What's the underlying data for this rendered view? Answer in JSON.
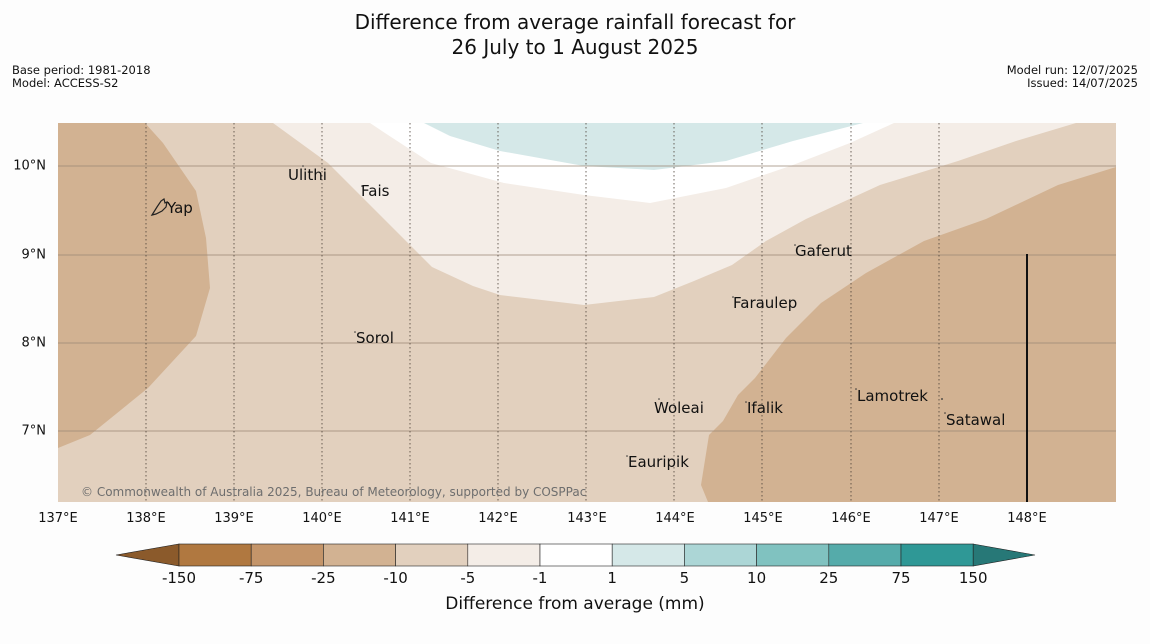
{
  "title": {
    "line1": "Difference from average rainfall forecast for",
    "line2": "26 July to 1 August 2025"
  },
  "meta": {
    "base_period": "Base period: 1981-2018",
    "model": "Model: ACCESS-S2",
    "model_run": "Model run: 12/07/2025",
    "issued": "Issued: 14/07/2025"
  },
  "axes": {
    "lat_labels": [
      "10°N",
      "9°N",
      "8°N",
      "7°N"
    ],
    "lon_labels": [
      "137°E",
      "138°E",
      "139°E",
      "140°E",
      "141°E",
      "142°E",
      "143°E",
      "144°E",
      "145°E",
      "146°E",
      "147°E",
      "148°E"
    ]
  },
  "places": [
    {
      "name": "Ulithi"
    },
    {
      "name": "Fais"
    },
    {
      "name": "Yap"
    },
    {
      "name": "Gaferut"
    },
    {
      "name": "Faraulep"
    },
    {
      "name": "Sorol"
    },
    {
      "name": "Lamotrek"
    },
    {
      "name": "Woleai"
    },
    {
      "name": "Ifalik"
    },
    {
      "name": "Satawal"
    },
    {
      "name": "Eauripik"
    }
  ],
  "copyright": "© Commonwealth of Australia 2025, Bureau of Meteorology, supported by COSPPac",
  "legend": {
    "title": "Difference from average (mm)",
    "ticks": [
      "-150",
      "-75",
      "-25",
      "-10",
      "-5",
      "-1",
      "1",
      "5",
      "10",
      "25",
      "75",
      "150"
    ],
    "colors": [
      "#8b5a2b",
      "#b07840",
      "#c4956a",
      "#d2b292",
      "#e2d0be",
      "#f4ede7",
      "#ffffff",
      "#d5e8e8",
      "#acd6d6",
      "#80c2c0",
      "#55abaa",
      "#2f9896",
      "#277877"
    ]
  }
}
